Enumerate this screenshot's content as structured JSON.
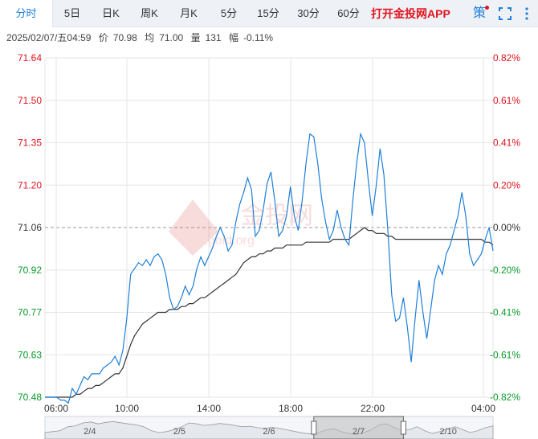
{
  "tabs": [
    {
      "label": "分时",
      "active": true
    },
    {
      "label": "5日",
      "active": false
    },
    {
      "label": "日K",
      "active": false
    },
    {
      "label": "周K",
      "active": false
    },
    {
      "label": "月K",
      "active": false
    },
    {
      "label": "5分",
      "active": false
    },
    {
      "label": "15分",
      "active": false
    },
    {
      "label": "30分",
      "active": false
    },
    {
      "label": "60分",
      "active": false
    }
  ],
  "promo_link": "打开金投网APP",
  "strategy_label": "策",
  "info": {
    "datetime": "2025/02/07/五04:59",
    "price_label": "价",
    "price": "70.98",
    "avg_label": "均",
    "avg": "71.00",
    "volume_label": "量",
    "volume": "131",
    "change_label": "幅",
    "change": "-0.11%"
  },
  "watermark": {
    "cn": "金投网",
    "en": "cngold.org"
  },
  "colors": {
    "up": "#e0141e",
    "down": "#0a9a2a",
    "price_line": "#1f7fd8",
    "avg_line": "#333333",
    "grid": "#e6e6e6",
    "navigator_fill": "#bbbbbb"
  },
  "chart_data": {
    "type": "line",
    "prev_close": 71.06,
    "y_ticks": [
      "71.64",
      "71.50",
      "71.35",
      "71.20",
      "71.06",
      "70.92",
      "70.77",
      "70.63",
      "70.48"
    ],
    "pct_ticks": [
      "0.82%",
      "0.61%",
      "0.41%",
      "0.20%",
      "0.00%",
      "-0.20%",
      "-0.41%",
      "-0.61%",
      "-0.82%"
    ],
    "x_ticks": [
      "06:00",
      "10:00",
      "14:00",
      "18:00",
      "22:00",
      "04:00"
    ],
    "ylim": [
      70.48,
      71.64
    ],
    "price": [
      70.48,
      70.48,
      70.48,
      70.48,
      70.47,
      70.47,
      70.46,
      70.51,
      70.49,
      70.52,
      70.55,
      70.54,
      70.56,
      70.56,
      70.56,
      70.58,
      70.59,
      70.6,
      70.62,
      70.59,
      70.64,
      70.75,
      70.9,
      70.92,
      70.94,
      70.93,
      70.95,
      70.93,
      70.96,
      70.97,
      70.95,
      70.9,
      70.82,
      70.78,
      70.79,
      70.82,
      70.86,
      70.83,
      70.86,
      70.92,
      70.96,
      70.93,
      70.96,
      70.99,
      71.03,
      71.06,
      71.03,
      70.98,
      71.0,
      71.08,
      71.14,
      71.18,
      71.23,
      71.19,
      71.03,
      71.05,
      71.12,
      71.21,
      71.25,
      71.15,
      71.03,
      71.05,
      71.1,
      71.2,
      71.1,
      71.05,
      71.15,
      71.28,
      71.38,
      71.37,
      71.28,
      71.16,
      71.08,
      71.02,
      71.05,
      71.12,
      71.06,
      71.02,
      71.0,
      71.15,
      71.28,
      71.38,
      71.35,
      71.22,
      71.1,
      71.2,
      71.33,
      71.24,
      71.05,
      70.83,
      70.74,
      70.75,
      70.82,
      70.72,
      70.6,
      70.75,
      70.88,
      70.77,
      70.68,
      70.78,
      70.88,
      70.93,
      70.9,
      70.97,
      71.0,
      71.05,
      71.1,
      71.18,
      71.1,
      70.97,
      70.93,
      70.95,
      70.97,
      71.02,
      71.06,
      70.98
    ],
    "avg": [
      70.48,
      70.48,
      70.48,
      70.48,
      70.48,
      70.48,
      70.48,
      70.48,
      70.49,
      70.49,
      70.5,
      70.51,
      70.51,
      70.52,
      70.52,
      70.53,
      70.54,
      70.55,
      70.56,
      70.56,
      70.58,
      70.62,
      70.66,
      70.69,
      70.71,
      70.73,
      70.74,
      70.75,
      70.76,
      70.77,
      70.77,
      70.77,
      70.78,
      70.78,
      70.78,
      70.79,
      70.79,
      70.8,
      70.8,
      70.81,
      70.82,
      70.82,
      70.83,
      70.84,
      70.85,
      70.86,
      70.87,
      70.88,
      70.89,
      70.9,
      70.92,
      70.94,
      70.95,
      70.96,
      70.96,
      70.97,
      70.97,
      70.98,
      70.98,
      70.99,
      70.99,
      70.99,
      71.0,
      71.0,
      71.0,
      71.0,
      71.0,
      71.01,
      71.01,
      71.01,
      71.01,
      71.01,
      71.01,
      71.01,
      71.02,
      71.02,
      71.02,
      71.02,
      71.02,
      71.03,
      71.04,
      71.05,
      71.06,
      71.05,
      71.05,
      71.04,
      71.04,
      71.04,
      71.03,
      71.03,
      71.02,
      71.02,
      71.02,
      71.02,
      71.02,
      71.02,
      71.02,
      71.02,
      71.02,
      71.02,
      71.02,
      71.02,
      71.02,
      71.02,
      71.02,
      71.02,
      71.02,
      71.02,
      71.02,
      71.02,
      71.02,
      71.02,
      71.02,
      71.01,
      71.01,
      71.0
    ],
    "navigator": {
      "dates": [
        "2/4",
        "2/5",
        "2/6",
        "2/7",
        "2/10"
      ],
      "selected": "2/7",
      "levels": [
        0.25,
        0.3,
        0.35,
        0.55,
        0.6,
        0.75,
        0.8,
        0.7,
        0.78,
        0.82,
        0.76,
        0.7,
        0.65,
        0.55,
        0.35,
        0.25,
        0.3,
        0.4,
        0.55,
        0.75,
        0.7,
        0.62,
        0.66,
        0.72,
        0.68,
        0.62,
        0.55,
        0.58,
        0.5,
        0.48,
        0.52,
        0.45,
        0.38,
        0.3,
        0.22,
        0.18,
        0.25,
        0.38,
        0.45,
        0.3,
        0.2,
        0.15,
        0.25,
        0.4,
        0.65,
        0.7,
        0.5,
        0.35,
        0.4,
        0.55,
        0.35,
        0.2,
        0.3,
        0.45,
        0.55,
        0.4,
        0.25,
        0.35,
        0.5,
        0.6
      ]
    }
  }
}
